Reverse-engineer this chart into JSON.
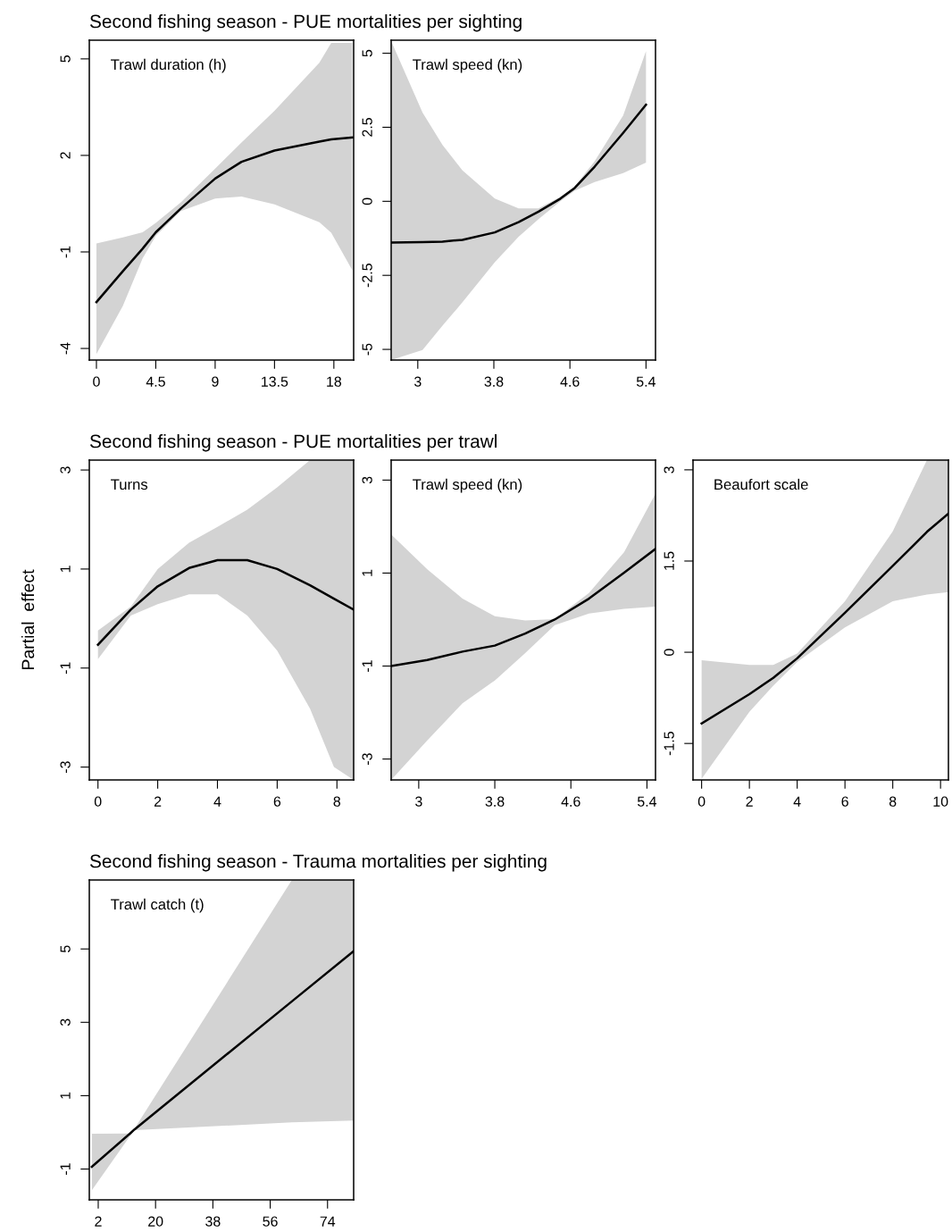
{
  "chart_data": [
    {
      "type": "line",
      "title": "Second fishing season - PUE mortalities per sighting",
      "annotations": [
        "Trawl duration (h)"
      ],
      "xlim": [
        -0.54,
        19.5
      ],
      "xticks": [
        0,
        4.5,
        9,
        13.5,
        18
      ],
      "ylim": [
        -4.36,
        5.58
      ],
      "yticks": [
        -4,
        -1,
        2,
        5
      ],
      "series": [
        {
          "color": "#000000",
          "x": [
            0,
            2,
            3.5,
            4.5,
            6.4,
            9,
            11,
            13.5,
            16.9,
            17.8,
            19.4
          ],
          "values": [
            -2.56,
            -1.6,
            -0.9,
            -0.39,
            0.35,
            1.28,
            1.8,
            2.15,
            2.43,
            2.5,
            2.56
          ],
          "upper": [
            -0.74,
            -0.55,
            -0.39,
            -0.1,
            0.54,
            1.59,
            2.4,
            3.39,
            4.88,
            5.5,
            5.5
          ],
          "lower": [
            -4.17,
            -2.68,
            -1.2,
            -0.5,
            0.27,
            0.66,
            0.72,
            0.48,
            -0.08,
            -0.4,
            -1.57
          ]
        }
      ]
    },
    {
      "type": "line",
      "annotations": [
        "Trawl speed (kn)"
      ],
      "xlim": [
        2.72,
        5.5
      ],
      "xticks": [
        3,
        3.8,
        4.6,
        5.4
      ],
      "ylim": [
        -5.36,
        5.44
      ],
      "yticks": [
        -5,
        -2.5,
        0,
        2.5,
        5
      ],
      "series": [
        {
          "color": "#000000",
          "x": [
            2.72,
            3.05,
            3.26,
            3.47,
            3.81,
            4.06,
            4.27,
            4.5,
            4.65,
            4.86,
            5.16,
            5.4
          ],
          "values": [
            -1.39,
            -1.38,
            -1.36,
            -1.3,
            -1.05,
            -0.7,
            -0.35,
            0.09,
            0.45,
            1.17,
            2.31,
            3.26
          ],
          "upper": [
            5.41,
            3.0,
            1.9,
            1.04,
            0.09,
            -0.24,
            -0.24,
            0.15,
            0.5,
            1.35,
            2.9,
            5.07
          ],
          "lower": [
            -5.36,
            -5.02,
            -4.2,
            -3.41,
            -2.06,
            -1.2,
            -0.6,
            0.0,
            0.36,
            0.65,
            0.95,
            1.31
          ]
        }
      ]
    },
    {
      "type": "line",
      "title": "Second fishing season - PUE mortalities per trawl",
      "ylabel": "Partial  effect",
      "annotations": [
        "Turns"
      ],
      "xlim": [
        -0.29,
        8.56
      ],
      "xticks": [
        0,
        2,
        4,
        6,
        8
      ],
      "ylim": [
        -3.26,
        3.2
      ],
      "yticks": [
        -3,
        -1,
        1,
        3
      ],
      "series": [
        {
          "color": "#000000",
          "x": [
            0,
            1.1,
            2,
            3.05,
            4,
            5,
            6,
            7.1,
            7.9,
            8.56
          ],
          "values": [
            -0.53,
            0.18,
            0.65,
            1.02,
            1.18,
            1.18,
            1.0,
            0.67,
            0.4,
            0.18
          ],
          "upper": [
            -0.24,
            0.24,
            1.0,
            1.53,
            1.85,
            2.2,
            2.65,
            3.2,
            3.2,
            3.2
          ],
          "lower": [
            -0.82,
            0.06,
            0.29,
            0.49,
            0.49,
            0.06,
            -0.65,
            -1.82,
            -3.0,
            -3.26
          ]
        }
      ]
    },
    {
      "type": "line",
      "annotations": [
        "Trawl speed (kn)"
      ],
      "xlim": [
        2.71,
        5.49
      ],
      "xticks": [
        3,
        3.8,
        4.6,
        5.4
      ],
      "ylim": [
        -3.45,
        3.43
      ],
      "yticks": [
        -3,
        -1,
        1,
        3
      ],
      "series": [
        {
          "color": "#000000",
          "x": [
            2.71,
            3.09,
            3.46,
            3.8,
            4.12,
            4.43,
            4.79,
            5.16,
            5.49
          ],
          "values": [
            -1.0,
            -0.87,
            -0.69,
            -0.56,
            -0.3,
            0.0,
            0.45,
            1.01,
            1.52
          ],
          "upper": [
            1.83,
            1.08,
            0.45,
            0.07,
            -0.02,
            0.01,
            0.57,
            1.45,
            2.71
          ],
          "lower": [
            -3.45,
            -2.6,
            -1.8,
            -1.31,
            -0.72,
            -0.12,
            0.13,
            0.23,
            0.28
          ]
        }
      ]
    },
    {
      "type": "line",
      "annotations": [
        "Beaufort scale"
      ],
      "xlim": [
        -0.36,
        10.33
      ],
      "xticks": [
        0,
        2,
        4,
        6,
        8,
        10
      ],
      "ylim": [
        -2.1,
        3.16
      ],
      "yticks": [
        -1.5,
        0,
        1.5,
        3
      ],
      "series": [
        {
          "color": "#000000",
          "x": [
            0,
            2,
            3,
            4,
            6,
            8,
            9.43,
            10.33
          ],
          "values": [
            -1.17,
            -0.69,
            -0.42,
            -0.1,
            0.65,
            1.42,
            1.98,
            2.28
          ],
          "upper": [
            -0.13,
            -0.21,
            -0.21,
            -0.02,
            0.84,
            1.99,
            3.16,
            3.16
          ],
          "lower": [
            -2.08,
            -0.98,
            -0.55,
            -0.16,
            0.41,
            0.84,
            0.95,
            0.99
          ]
        }
      ]
    },
    {
      "type": "line",
      "title": "Second fishing season - Trauma mortalities per sighting",
      "annotations": [
        "Trawl catch (t)"
      ],
      "xlim": [
        -0.8,
        82.2
      ],
      "xticks": [
        2,
        20,
        38,
        56,
        74
      ],
      "ylim": [
        -1.84,
        6.88
      ],
      "yticks": [
        -1,
        1,
        3,
        5
      ],
      "series": [
        {
          "color": "#000000",
          "x": [
            0,
            12,
            13.4,
            62.8,
            82.2
          ],
          "values": [
            -0.94,
            -0.03,
            0.08,
            3.57,
            4.94
          ],
          "upper": [
            -0.04,
            -0.03,
            0.1,
            6.88,
            6.88
          ],
          "lower": [
            -1.58,
            -0.1,
            0.06,
            0.27,
            0.32
          ]
        }
      ]
    }
  ]
}
